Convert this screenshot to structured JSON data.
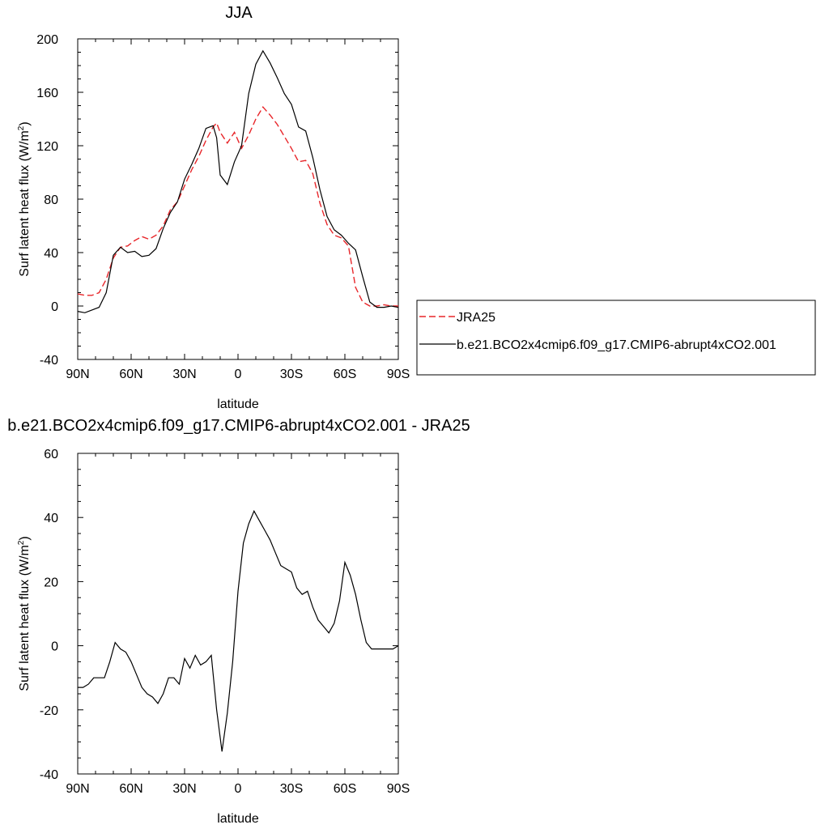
{
  "chart_data": [
    {
      "type": "line",
      "title": "JJA",
      "xlabel": "latitude",
      "ylabel": "Surf latent heat flux (W/m",
      "ylabel_sup": "2",
      "ylabel_close": ")",
      "xlim": [
        90,
        -90
      ],
      "ylim": [
        -40,
        200
      ],
      "x_ticks": [
        90,
        60,
        30,
        0,
        -30,
        -60,
        -90
      ],
      "x_tick_labels": [
        "90N",
        "60N",
        "30N",
        "0",
        "30S",
        "60S",
        "90S"
      ],
      "y_ticks": [
        -40,
        0,
        40,
        80,
        120,
        160,
        200
      ],
      "y_tick_labels": [
        "-40",
        "0",
        "40",
        "80",
        "120",
        "160",
        "200"
      ],
      "legend_position": "right",
      "series": [
        {
          "name": "JRA25",
          "color": "#e8262a",
          "dash": "dashed",
          "x": [
            90,
            86,
            82,
            78,
            74,
            70,
            66,
            62,
            58,
            54,
            50,
            46,
            42,
            38,
            34,
            30,
            26,
            22,
            18,
            14,
            12,
            10,
            6,
            2,
            -2,
            -6,
            -10,
            -14,
            -18,
            -22,
            -26,
            -30,
            -34,
            -38,
            -42,
            -46,
            -50,
            -54,
            -58,
            -62,
            -66,
            -70,
            -74,
            -78,
            -82,
            -86,
            -90
          ],
          "values": [
            9,
            8,
            8,
            10,
            20,
            36,
            44,
            45,
            49,
            52,
            50,
            53,
            60,
            72,
            78,
            90,
            102,
            112,
            124,
            134,
            137,
            130,
            122,
            130,
            118,
            128,
            140,
            149,
            143,
            136,
            127,
            118,
            108,
            109,
            99,
            77,
            61,
            53,
            51,
            45,
            14,
            3,
            0,
            0,
            1,
            0,
            0
          ]
        },
        {
          "name": "b.e21.BCO2x4cmip6.f09_g17.CMIP6-abrupt4xCO2.001",
          "color": "#000000",
          "dash": "solid",
          "x": [
            90,
            86,
            82,
            78,
            74,
            70,
            66,
            62,
            58,
            54,
            50,
            46,
            42,
            38,
            34,
            30,
            26,
            22,
            18,
            14,
            12,
            10,
            6,
            2,
            -2,
            -6,
            -10,
            -14,
            -18,
            -22,
            -26,
            -30,
            -34,
            -38,
            -42,
            -46,
            -50,
            -54,
            -58,
            -62,
            -66,
            -70,
            -74,
            -78,
            -82,
            -86,
            -90
          ],
          "values": [
            -4,
            -5,
            -3,
            -1,
            10,
            38,
            44,
            40,
            41,
            37,
            38,
            43,
            58,
            70,
            78,
            95,
            106,
            118,
            133,
            135,
            126,
            98,
            91,
            108,
            120,
            159,
            181,
            191,
            182,
            171,
            159,
            151,
            134,
            131,
            111,
            87,
            67,
            57,
            53,
            47,
            42,
            22,
            3,
            -1,
            -1,
            0,
            -1
          ]
        }
      ]
    },
    {
      "type": "line",
      "title": "b.e21.BCO2x4cmip6.f09_g17.CMIP6-abrupt4xCO2.001 - JRA25",
      "xlabel": "latitude",
      "ylabel": "Surf latent heat flux (W/m",
      "ylabel_sup": "2",
      "ylabel_close": ")",
      "xlim": [
        90,
        -90
      ],
      "ylim": [
        -40,
        60
      ],
      "x_ticks": [
        90,
        60,
        30,
        0,
        -30,
        -60,
        -90
      ],
      "x_tick_labels": [
        "90N",
        "60N",
        "30N",
        "0",
        "30S",
        "60S",
        "90S"
      ],
      "y_ticks": [
        -40,
        -20,
        0,
        20,
        40,
        60
      ],
      "y_tick_labels": [
        "-40",
        "-20",
        "0",
        "20",
        "40",
        "60"
      ],
      "series": [
        {
          "color": "#000000",
          "dash": "solid",
          "x": [
            90,
            87,
            84,
            81,
            78,
            75,
            72,
            69,
            66,
            63,
            60,
            57,
            54,
            51,
            48,
            45,
            42,
            39,
            36,
            33,
            30,
            27,
            24,
            21,
            18,
            15,
            12,
            9,
            6,
            3,
            0,
            -3,
            -6,
            -9,
            -12,
            -15,
            -18,
            -21,
            -24,
            -27,
            -30,
            -33,
            -36,
            -39,
            -42,
            -45,
            -48,
            -51,
            -54,
            -57,
            -60,
            -63,
            -66,
            -69,
            -72,
            -75,
            -78,
            -81,
            -84,
            -87,
            -90
          ],
          "values": [
            -13,
            -13,
            -12,
            -10,
            -10,
            -10,
            -5,
            1,
            -1,
            -2,
            -5,
            -9,
            -13,
            -15,
            -16,
            -18,
            -15,
            -10,
            -10,
            -12,
            -4,
            -7,
            -3,
            -6,
            -5,
            -3,
            -20,
            -33,
            -21,
            -5,
            17,
            32,
            38,
            42,
            39,
            36,
            33,
            29,
            25,
            24,
            23,
            18,
            16,
            17,
            12,
            8,
            6,
            4,
            7,
            14,
            26,
            22,
            16,
            8,
            1,
            -1,
            -1,
            -1,
            -1,
            -1,
            0
          ]
        }
      ]
    }
  ]
}
